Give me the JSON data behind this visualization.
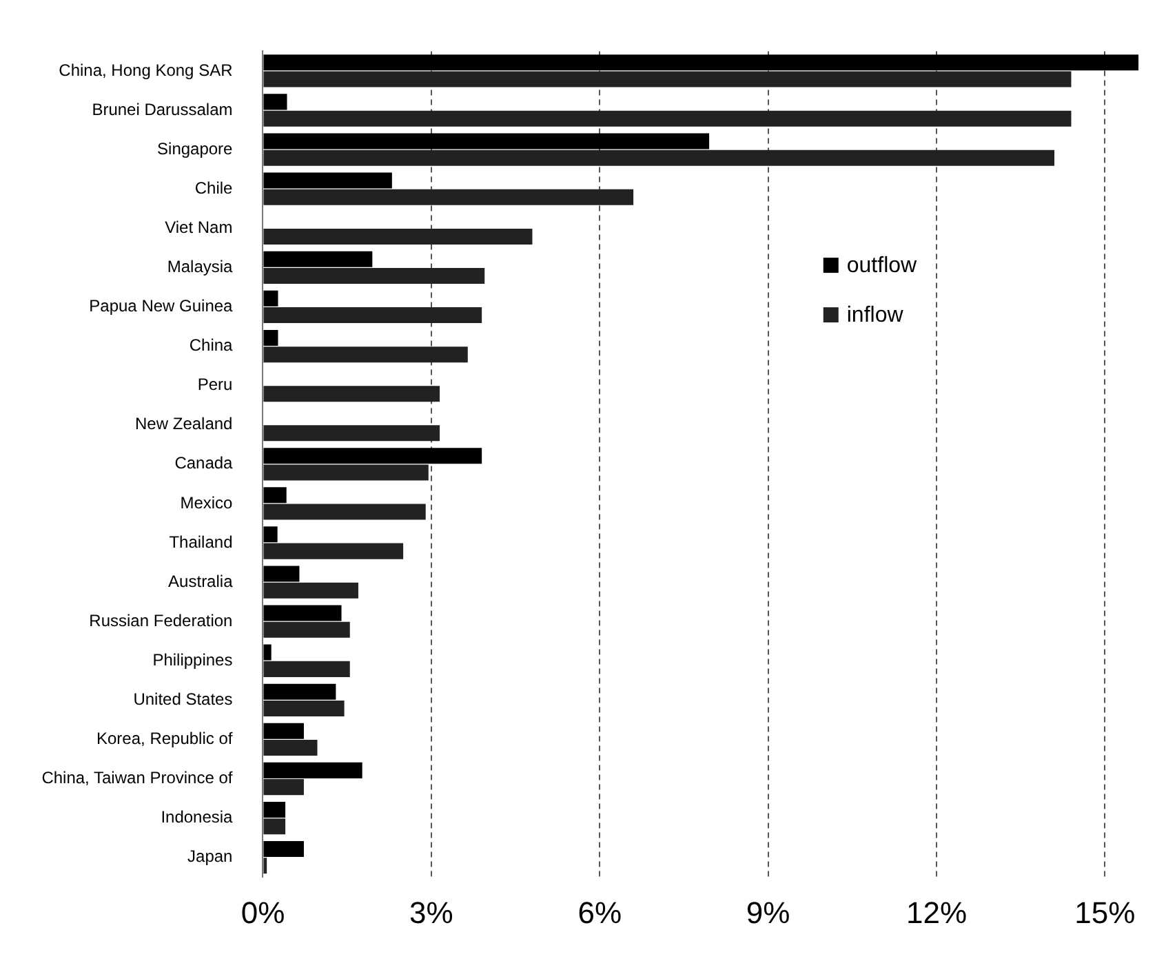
{
  "chart_data": {
    "type": "bar",
    "orientation": "horizontal",
    "categories": [
      "China, Hong Kong SAR",
      "Brunei Darussalam",
      "Singapore",
      "Chile",
      "Viet Nam",
      "Malaysia",
      "Papua New Guinea",
      "China",
      "Peru",
      "New Zealand",
      "Canada",
      "Mexico",
      "Thailand",
      "Australia",
      "Russian Federation",
      "Philippines",
      "United States",
      "Korea, Republic of",
      "China, Taiwan Province of",
      "Indonesia",
      "Japan"
    ],
    "series": [
      {
        "name": "outflow",
        "color": "#000000",
        "values": [
          15.6,
          0.43,
          7.95,
          2.3,
          0,
          1.95,
          0.27,
          0.27,
          0,
          0,
          3.9,
          0.42,
          0.26,
          0.65,
          1.4,
          0.15,
          1.3,
          0.73,
          1.77,
          0.4,
          0.73
        ]
      },
      {
        "name": "inflow",
        "color": "#222222",
        "values": [
          14.4,
          14.4,
          14.1,
          6.6,
          4.8,
          3.95,
          3.9,
          3.65,
          3.15,
          3.15,
          2.95,
          2.9,
          2.5,
          1.7,
          1.55,
          1.55,
          1.45,
          0.97,
          0.73,
          0.4,
          0.07
        ]
      }
    ],
    "xlim": [
      0,
      15.6
    ],
    "xticks": [
      {
        "value": 0,
        "label": "0%"
      },
      {
        "value": 3,
        "label": "3%"
      },
      {
        "value": 6,
        "label": "6%"
      },
      {
        "value": 9,
        "label": "9%"
      },
      {
        "value": 12,
        "label": "12%"
      },
      {
        "value": 15,
        "label": "15%"
      }
    ],
    "grid": "x",
    "legend": "right"
  }
}
